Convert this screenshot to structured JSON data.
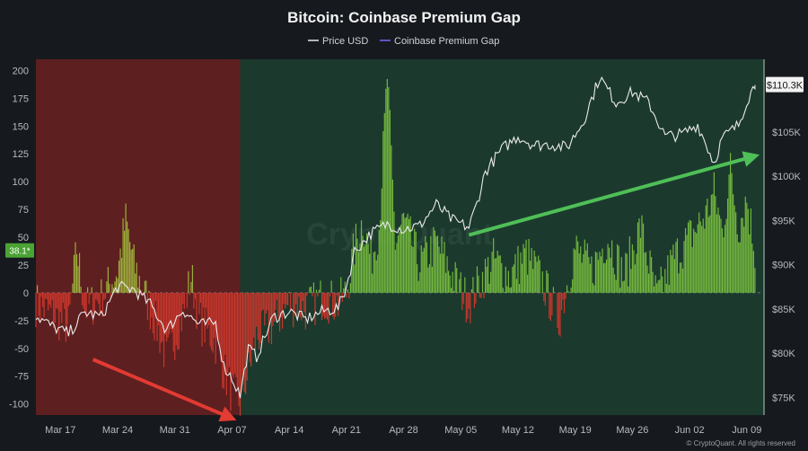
{
  "chart_data": {
    "type": "line",
    "title": "Bitcoin: Coinbase Premium Gap",
    "legend": {
      "placement": "top-center",
      "entries": [
        {
          "label": "Price USD",
          "color": "#e8e8e8"
        },
        {
          "label": "Coinbase Premium Gap",
          "color": "#7b61ff"
        }
      ]
    },
    "x_axis": {
      "type": "date",
      "range": [
        "2025-03-14",
        "2025-06-11"
      ],
      "ticks": [
        {
          "date": "2025-03-17",
          "label": "Mar 17"
        },
        {
          "date": "2025-03-24",
          "label": "Mar 24"
        },
        {
          "date": "2025-03-31",
          "label": "Mar 31"
        },
        {
          "date": "2025-04-07",
          "label": "Apr 07"
        },
        {
          "date": "2025-04-14",
          "label": "Apr 14"
        },
        {
          "date": "2025-04-21",
          "label": "Apr 21"
        },
        {
          "date": "2025-04-28",
          "label": "Apr 28"
        },
        {
          "date": "2025-05-05",
          "label": "May 05"
        },
        {
          "date": "2025-05-12",
          "label": "May 12"
        },
        {
          "date": "2025-05-19",
          "label": "May 19"
        },
        {
          "date": "2025-05-26",
          "label": "May 26"
        },
        {
          "date": "2025-06-02",
          "label": "Jun 02"
        },
        {
          "date": "2025-06-09",
          "label": "Jun 09"
        }
      ]
    },
    "y_left": {
      "range": [
        -110,
        210
      ],
      "ticks": [
        {
          "value": 200,
          "label": "200"
        },
        {
          "value": 175,
          "label": "175"
        },
        {
          "value": 150,
          "label": "150"
        },
        {
          "value": 125,
          "label": "125"
        },
        {
          "value": 100,
          "label": "100"
        },
        {
          "value": 75,
          "label": "75"
        },
        {
          "value": 50,
          "label": "50"
        },
        {
          "value": 25,
          "label": "25"
        },
        {
          "value": 0,
          "label": "0"
        },
        {
          "value": -25,
          "label": "-25"
        },
        {
          "value": -50,
          "label": "-50"
        },
        {
          "value": -75,
          "label": "-75"
        },
        {
          "value": -100,
          "label": "-100"
        }
      ]
    },
    "y_right": {
      "range": [
        73000,
        113200
      ],
      "ticks": [
        {
          "value": 105000,
          "label": "$105K"
        },
        {
          "value": 100000,
          "label": "$100K"
        },
        {
          "value": 95000,
          "label": "$95K"
        },
        {
          "value": 90000,
          "label": "$90K"
        },
        {
          "value": 85000,
          "label": "$85K"
        },
        {
          "value": 80000,
          "label": "$80K"
        },
        {
          "value": 75000,
          "label": "$75K"
        }
      ]
    },
    "regions": [
      {
        "start": "2025-03-14",
        "end": "2025-04-08",
        "color": "#5e1f20"
      },
      {
        "start": "2025-04-08",
        "end": "2025-06-11",
        "color": "#1b3a2d"
      }
    ],
    "current_labels": {
      "premium": "38.1*",
      "price": "$110.3K",
      "premium_value": 38.1,
      "price_value": 110300
    },
    "premium_colors": {
      "positive_a": "#74b83e",
      "positive_b": "#9caf3c",
      "negative": "#c9372c"
    },
    "price_color": "#eaeaea",
    "series": [
      {
        "name": "Price USD",
        "axis": "right",
        "points": [
          [
            "2025-03-14",
            84200
          ],
          [
            "2025-03-16",
            83000
          ],
          [
            "2025-03-18",
            82200
          ],
          [
            "2025-03-20",
            84600
          ],
          [
            "2025-03-22",
            84100
          ],
          [
            "2025-03-24",
            87500
          ],
          [
            "2025-03-26",
            87200
          ],
          [
            "2025-03-28",
            85500
          ],
          [
            "2025-03-30",
            82600
          ],
          [
            "2025-04-01",
            84900
          ],
          [
            "2025-04-03",
            83200
          ],
          [
            "2025-04-05",
            83400
          ],
          [
            "2025-04-06",
            78500
          ],
          [
            "2025-04-07",
            77200
          ],
          [
            "2025-04-08",
            75200
          ],
          [
            "2025-04-09",
            80500
          ],
          [
            "2025-04-10",
            79600
          ],
          [
            "2025-04-12",
            84000
          ],
          [
            "2025-04-14",
            84700
          ],
          [
            "2025-04-16",
            83800
          ],
          [
            "2025-04-18",
            84700
          ],
          [
            "2025-04-20",
            85100
          ],
          [
            "2025-04-21",
            87500
          ],
          [
            "2025-04-22",
            91500
          ],
          [
            "2025-04-24",
            93500
          ],
          [
            "2025-04-26",
            94600
          ],
          [
            "2025-04-28",
            94000
          ],
          [
            "2025-04-30",
            94400
          ],
          [
            "2025-05-02",
            96800
          ],
          [
            "2025-05-04",
            95000
          ],
          [
            "2025-05-06",
            94200
          ],
          [
            "2025-05-07",
            97000
          ],
          [
            "2025-05-08",
            100500
          ],
          [
            "2025-05-10",
            103000
          ],
          [
            "2025-05-12",
            104500
          ],
          [
            "2025-05-14",
            103500
          ],
          [
            "2025-05-16",
            103600
          ],
          [
            "2025-05-18",
            103200
          ],
          [
            "2025-05-20",
            106200
          ],
          [
            "2025-05-22",
            111200
          ],
          [
            "2025-05-24",
            108300
          ],
          [
            "2025-05-26",
            109500
          ],
          [
            "2025-05-28",
            108300
          ],
          [
            "2025-05-30",
            104500
          ],
          [
            "2025-06-01",
            104700
          ],
          [
            "2025-06-03",
            105800
          ],
          [
            "2025-06-05",
            101500
          ],
          [
            "2025-06-06",
            104300
          ],
          [
            "2025-06-08",
            105800
          ],
          [
            "2025-06-09",
            108500
          ],
          [
            "2025-06-10",
            110300
          ]
        ]
      },
      {
        "name": "Coinbase Premium Gap",
        "axis": "left",
        "points": [
          [
            "2025-03-14",
            -10
          ],
          [
            "2025-03-16",
            -20
          ],
          [
            "2025-03-18",
            -30
          ],
          [
            "2025-03-19",
            40
          ],
          [
            "2025-03-20",
            -15
          ],
          [
            "2025-03-22",
            -5
          ],
          [
            "2025-03-24",
            20
          ],
          [
            "2025-03-25",
            65
          ],
          [
            "2025-03-26",
            25
          ],
          [
            "2025-03-27",
            5
          ],
          [
            "2025-03-29",
            -35
          ],
          [
            "2025-03-30",
            -60
          ],
          [
            "2025-04-01",
            -20
          ],
          [
            "2025-04-02",
            15
          ],
          [
            "2025-04-03",
            -25
          ],
          [
            "2025-04-05",
            -45
          ],
          [
            "2025-04-06",
            -70
          ],
          [
            "2025-04-07",
            -90
          ],
          [
            "2025-04-08",
            -100
          ],
          [
            "2025-04-09",
            -70
          ],
          [
            "2025-04-10",
            -40
          ],
          [
            "2025-04-12",
            -30
          ],
          [
            "2025-04-14",
            -10
          ],
          [
            "2025-04-16",
            -15
          ],
          [
            "2025-04-18",
            -5
          ],
          [
            "2025-04-20",
            -10
          ],
          [
            "2025-04-21",
            0
          ],
          [
            "2025-04-22",
            40
          ],
          [
            "2025-04-23",
            65
          ],
          [
            "2025-04-24",
            30
          ],
          [
            "2025-04-25",
            60
          ],
          [
            "2025-04-26",
            195
          ],
          [
            "2025-04-27",
            45
          ],
          [
            "2025-04-28",
            65
          ],
          [
            "2025-04-30",
            25
          ],
          [
            "2025-05-02",
            45
          ],
          [
            "2025-05-04",
            15
          ],
          [
            "2025-05-06",
            -10
          ],
          [
            "2025-05-07",
            5
          ],
          [
            "2025-05-09",
            30
          ],
          [
            "2025-05-11",
            15
          ],
          [
            "2025-05-13",
            35
          ],
          [
            "2025-05-15",
            10
          ],
          [
            "2025-05-17",
            -25
          ],
          [
            "2025-05-19",
            40
          ],
          [
            "2025-05-21",
            20
          ],
          [
            "2025-05-23",
            50
          ],
          [
            "2025-05-25",
            15
          ],
          [
            "2025-05-27",
            60
          ],
          [
            "2025-05-29",
            -5
          ],
          [
            "2025-05-31",
            30
          ],
          [
            "2025-06-02",
            50
          ],
          [
            "2025-06-04",
            70
          ],
          [
            "2025-06-05",
            90
          ],
          [
            "2025-06-06",
            55
          ],
          [
            "2025-06-07",
            110
          ],
          [
            "2025-06-08",
            60
          ],
          [
            "2025-06-09",
            85
          ],
          [
            "2025-06-10",
            38.1
          ]
        ]
      }
    ],
    "annotations": [
      {
        "type": "arrow",
        "color": "#e23b33",
        "from": [
          "2025-03-21",
          -60
        ],
        "to": [
          "2025-04-07",
          -113
        ]
      },
      {
        "type": "arrow",
        "color": "#4fbf57",
        "from": [
          "2025-05-06",
          52
        ],
        "to": [
          "2025-06-10",
          123
        ]
      }
    ],
    "grid": false
  },
  "watermark": "CryptoQuant",
  "credit": "© CryptoQuant. All rights reserved"
}
